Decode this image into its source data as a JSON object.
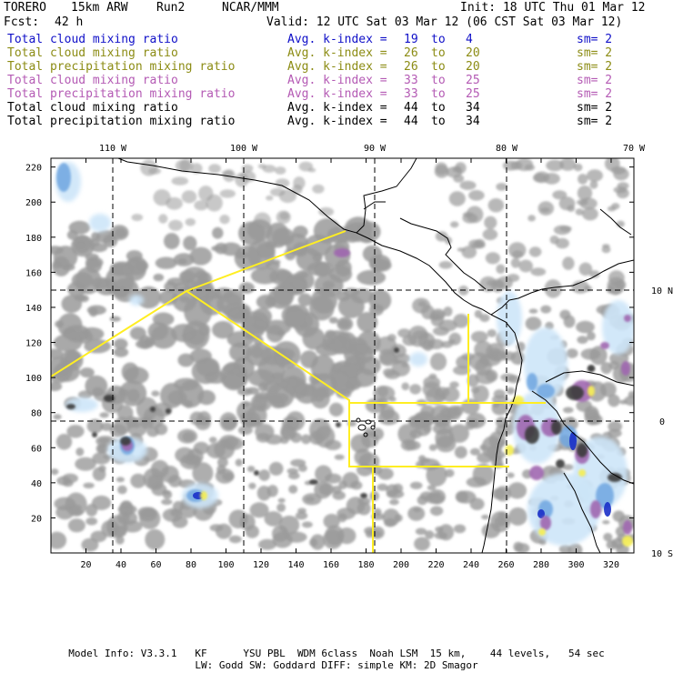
{
  "header": {
    "model": "TORERO",
    "resolution": "15km ARW",
    "run": "Run2",
    "org": "NCAR/MMM",
    "init": "Init: 18 UTC Thu 01 Mar 12",
    "fcst_label": "Fcst:",
    "fcst_value": "42 h",
    "valid": "Valid: 12 UTC Sat 03 Mar 12 (06 CST Sat 03 Mar 12)"
  },
  "legend": [
    {
      "field": "Total cloud mixing ratio",
      "index": "Avg. k-index =",
      "from": "19",
      "to_word": "to",
      "to": "4",
      "sm": "sm= 2",
      "color": "#1010c8"
    },
    {
      "field": "Total cloud mixing ratio",
      "index": "Avg. k-index =",
      "from": "26",
      "to_word": "to",
      "to": "20",
      "sm": "sm= 2",
      "color": "#8c8c14"
    },
    {
      "field": "Total precipitation mixing ratio",
      "index": "Avg. k-index =",
      "from": "26",
      "to_word": "to",
      "to": "20",
      "sm": "sm= 2",
      "color": "#8c8c14"
    },
    {
      "field": "Total cloud mixing ratio",
      "index": "Avg. k-index =",
      "from": "33",
      "to_word": "to",
      "to": "25",
      "sm": "sm= 2",
      "color": "#b45ab4"
    },
    {
      "field": "Total precipitation mixing ratio",
      "index": "Avg. k-index =",
      "from": "33",
      "to_word": "to",
      "to": "25",
      "sm": "sm= 2",
      "color": "#b45ab4"
    },
    {
      "field": "Total cloud mixing ratio",
      "index": "Avg. k-index =",
      "from": "44",
      "to_word": "to",
      "to": "34",
      "sm": "sm= 2",
      "color": "#000000"
    },
    {
      "field": "Total precipitation mixing ratio",
      "index": "Avg. k-index =",
      "from": "44",
      "to_word": "to",
      "to": "34",
      "sm": "sm= 2",
      "color": "#000000"
    }
  ],
  "map": {
    "top_labels": [
      "110 W",
      "100 W",
      "90 W",
      "80 W",
      "70 W"
    ],
    "right_labels": [
      "10 N",
      "0",
      "10 S"
    ],
    "y_ticks": [
      "220",
      "200",
      "180",
      "160",
      "140",
      "120",
      "100",
      "80",
      "60",
      "40",
      "20"
    ],
    "x_ticks": [
      "20",
      "40",
      "60",
      "80",
      "100",
      "120",
      "140",
      "160",
      "180",
      "200",
      "220",
      "240",
      "260",
      "280",
      "300",
      "320"
    ],
    "colors": {
      "cloud_light": "#9a9a9a",
      "cloud_dark": "#3c3c3c",
      "blue_light": "#cde6f8",
      "blue": "#6ea6e0",
      "blue_dark": "#1a2fc8",
      "purple": "#a066b0",
      "yellow": "#f4ee5a",
      "coast": "#000000",
      "outline": "#ffee22"
    }
  },
  "footer": {
    "line1": "Model Info: V3.3.1   KF      YSU PBL  WDM 6class  Noah LSM  15 km,    44 levels,   54 sec",
    "line2": "LW: Godd SW: Goddard DIFF: simple KM: 2D Smagor"
  }
}
